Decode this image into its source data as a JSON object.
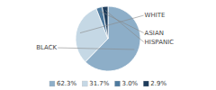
{
  "chart_data": {
    "type": "pie",
    "categories": [
      "BLACK",
      "WHITE",
      "ASIAN",
      "HISPANIC"
    ],
    "values": [
      62.3,
      31.7,
      3.0,
      2.9
    ],
    "value_labels": [
      "62.3%",
      "31.7%",
      "3.0%",
      "2.9%"
    ],
    "colors": [
      "#8daec8",
      "#c5d8e5",
      "#4e7a9e",
      "#1e3d5c"
    ],
    "legend": "bottom"
  }
}
